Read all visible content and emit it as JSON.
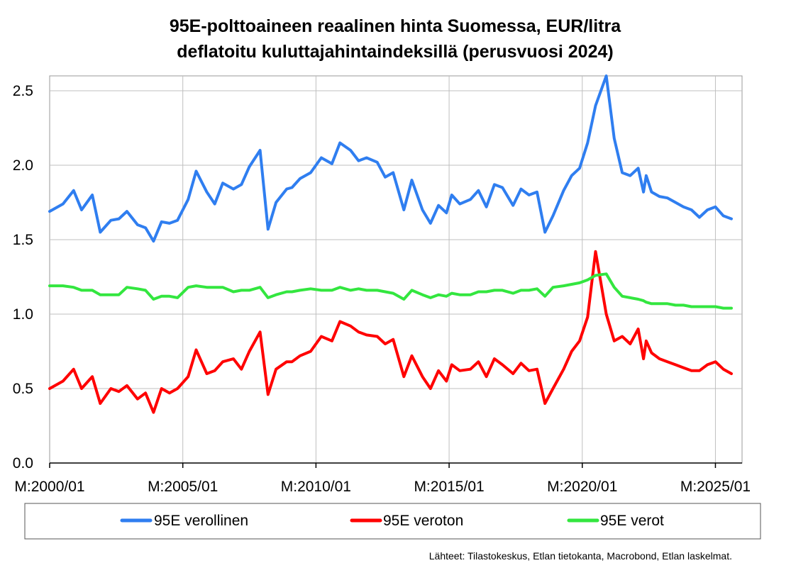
{
  "chart_data": {
    "type": "line",
    "title": "95E-polttoaineen reaalinen hinta Suomessa, EUR/litra",
    "subtitle": "deflatoitu kuluttajahintaindeksillä (perusvuosi 2024)",
    "ylim": [
      0,
      2.6
    ],
    "yticks": [
      "0.0",
      "0.5",
      "1.0",
      "1.5",
      "2.0",
      "2.5"
    ],
    "x_tick_labels": [
      "M:2000/01",
      "M:2005/01",
      "M:2010/01",
      "M:2015/01",
      "M:2020/01",
      "M:2025/01"
    ],
    "x_ticks_years": [
      2000,
      2005,
      2010,
      2015,
      2020,
      2025
    ],
    "xlim": [
      2000.0,
      2026.0
    ],
    "grid": true,
    "legend_position": "bottom",
    "series": [
      {
        "name": "95E verollinen",
        "color": "#2f7ef0",
        "x": [
          2000.0,
          2000.5,
          2000.9,
          2001.2,
          2001.6,
          2001.9,
          2002.3,
          2002.6,
          2002.9,
          2003.3,
          2003.6,
          2003.9,
          2004.2,
          2004.5,
          2004.8,
          2005.2,
          2005.5,
          2005.9,
          2006.2,
          2006.5,
          2006.9,
          2007.2,
          2007.5,
          2007.9,
          2008.2,
          2008.5,
          2008.9,
          2009.1,
          2009.4,
          2009.8,
          2010.2,
          2010.6,
          2010.9,
          2011.3,
          2011.6,
          2011.9,
          2012.3,
          2012.6,
          2012.9,
          2013.3,
          2013.6,
          2014.0,
          2014.3,
          2014.6,
          2014.9,
          2015.1,
          2015.4,
          2015.8,
          2016.1,
          2016.4,
          2016.7,
          2017.0,
          2017.4,
          2017.7,
          2018.0,
          2018.3,
          2018.6,
          2018.9,
          2019.3,
          2019.6,
          2019.9,
          2020.2,
          2020.5,
          2020.9,
          2021.2,
          2021.5,
          2021.8,
          2022.1,
          2022.3,
          2022.4,
          2022.6,
          2022.9,
          2023.2,
          2023.5,
          2023.8,
          2024.1,
          2024.4,
          2024.7,
          2025.0,
          2025.3,
          2025.6
        ],
        "values": [
          1.69,
          1.74,
          1.83,
          1.7,
          1.8,
          1.55,
          1.63,
          1.64,
          1.69,
          1.6,
          1.58,
          1.49,
          1.62,
          1.61,
          1.63,
          1.77,
          1.96,
          1.82,
          1.74,
          1.88,
          1.84,
          1.87,
          1.99,
          2.1,
          1.57,
          1.75,
          1.84,
          1.85,
          1.91,
          1.95,
          2.05,
          2.01,
          2.15,
          2.1,
          2.03,
          2.05,
          2.02,
          1.92,
          1.95,
          1.7,
          1.9,
          1.7,
          1.61,
          1.73,
          1.68,
          1.8,
          1.74,
          1.77,
          1.83,
          1.72,
          1.87,
          1.85,
          1.73,
          1.84,
          1.8,
          1.82,
          1.55,
          1.66,
          1.83,
          1.93,
          1.98,
          2.15,
          2.4,
          2.6,
          2.18,
          1.95,
          1.93,
          1.98,
          1.82,
          1.93,
          1.82,
          1.79,
          1.78,
          1.75,
          1.72,
          1.7,
          1.65,
          1.7,
          1.72,
          1.66,
          1.64
        ]
      },
      {
        "name": "95E veroton",
        "color": "#ff0000",
        "x": [
          2000.0,
          2000.5,
          2000.9,
          2001.2,
          2001.6,
          2001.9,
          2002.3,
          2002.6,
          2002.9,
          2003.3,
          2003.6,
          2003.9,
          2004.2,
          2004.5,
          2004.8,
          2005.2,
          2005.5,
          2005.9,
          2006.2,
          2006.5,
          2006.9,
          2007.2,
          2007.5,
          2007.9,
          2008.2,
          2008.5,
          2008.9,
          2009.1,
          2009.4,
          2009.8,
          2010.2,
          2010.6,
          2010.9,
          2011.3,
          2011.6,
          2011.9,
          2012.3,
          2012.6,
          2012.9,
          2013.3,
          2013.6,
          2014.0,
          2014.3,
          2014.6,
          2014.9,
          2015.1,
          2015.4,
          2015.8,
          2016.1,
          2016.4,
          2016.7,
          2017.0,
          2017.4,
          2017.7,
          2018.0,
          2018.3,
          2018.6,
          2018.9,
          2019.3,
          2019.6,
          2019.9,
          2020.2,
          2020.5,
          2020.9,
          2021.2,
          2021.5,
          2021.8,
          2022.1,
          2022.3,
          2022.4,
          2022.6,
          2022.9,
          2023.2,
          2023.5,
          2023.8,
          2024.1,
          2024.4,
          2024.7,
          2025.0,
          2025.3,
          2025.6
        ],
        "values": [
          0.5,
          0.55,
          0.63,
          0.5,
          0.58,
          0.4,
          0.5,
          0.48,
          0.52,
          0.43,
          0.47,
          0.34,
          0.5,
          0.47,
          0.5,
          0.58,
          0.76,
          0.6,
          0.62,
          0.68,
          0.7,
          0.63,
          0.75,
          0.88,
          0.46,
          0.63,
          0.68,
          0.68,
          0.72,
          0.75,
          0.85,
          0.82,
          0.95,
          0.92,
          0.88,
          0.86,
          0.85,
          0.8,
          0.83,
          0.58,
          0.72,
          0.58,
          0.5,
          0.62,
          0.55,
          0.66,
          0.62,
          0.63,
          0.68,
          0.58,
          0.7,
          0.66,
          0.6,
          0.67,
          0.62,
          0.63,
          0.4,
          0.5,
          0.63,
          0.75,
          0.82,
          0.98,
          1.42,
          1.0,
          0.82,
          0.85,
          0.8,
          0.9,
          0.7,
          0.82,
          0.74,
          0.7,
          0.68,
          0.66,
          0.64,
          0.62,
          0.62,
          0.66,
          0.68,
          0.63,
          0.6
        ]
      },
      {
        "name": "95E verot",
        "color": "#33e63f",
        "x": [
          2000.0,
          2000.5,
          2000.9,
          2001.2,
          2001.6,
          2001.9,
          2002.3,
          2002.6,
          2002.9,
          2003.3,
          2003.6,
          2003.9,
          2004.2,
          2004.5,
          2004.8,
          2005.2,
          2005.5,
          2005.9,
          2006.2,
          2006.5,
          2006.9,
          2007.2,
          2007.5,
          2007.9,
          2008.2,
          2008.5,
          2008.9,
          2009.1,
          2009.4,
          2009.8,
          2010.2,
          2010.6,
          2010.9,
          2011.3,
          2011.6,
          2011.9,
          2012.3,
          2012.6,
          2012.9,
          2013.3,
          2013.6,
          2014.0,
          2014.3,
          2014.6,
          2014.9,
          2015.1,
          2015.4,
          2015.8,
          2016.1,
          2016.4,
          2016.7,
          2017.0,
          2017.4,
          2017.7,
          2018.0,
          2018.3,
          2018.6,
          2018.9,
          2019.3,
          2019.6,
          2019.9,
          2020.2,
          2020.5,
          2020.9,
          2021.2,
          2021.5,
          2021.8,
          2022.1,
          2022.3,
          2022.4,
          2022.6,
          2022.9,
          2023.2,
          2023.5,
          2023.8,
          2024.1,
          2024.4,
          2024.7,
          2025.0,
          2025.3,
          2025.6
        ],
        "values": [
          1.19,
          1.19,
          1.18,
          1.16,
          1.16,
          1.13,
          1.13,
          1.13,
          1.18,
          1.17,
          1.16,
          1.1,
          1.12,
          1.12,
          1.11,
          1.18,
          1.19,
          1.18,
          1.18,
          1.18,
          1.15,
          1.16,
          1.16,
          1.18,
          1.11,
          1.13,
          1.15,
          1.15,
          1.16,
          1.17,
          1.16,
          1.16,
          1.18,
          1.16,
          1.17,
          1.16,
          1.16,
          1.15,
          1.14,
          1.1,
          1.16,
          1.13,
          1.11,
          1.13,
          1.12,
          1.14,
          1.13,
          1.13,
          1.15,
          1.15,
          1.16,
          1.16,
          1.14,
          1.16,
          1.16,
          1.17,
          1.12,
          1.18,
          1.19,
          1.2,
          1.21,
          1.23,
          1.26,
          1.27,
          1.18,
          1.12,
          1.11,
          1.1,
          1.09,
          1.08,
          1.07,
          1.07,
          1.07,
          1.06,
          1.06,
          1.05,
          1.05,
          1.05,
          1.05,
          1.04,
          1.04
        ]
      }
    ]
  },
  "source": "Lähteet: Tilastokeskus, Etlan tietokanta, Macrobond, Etlan laskelmat."
}
